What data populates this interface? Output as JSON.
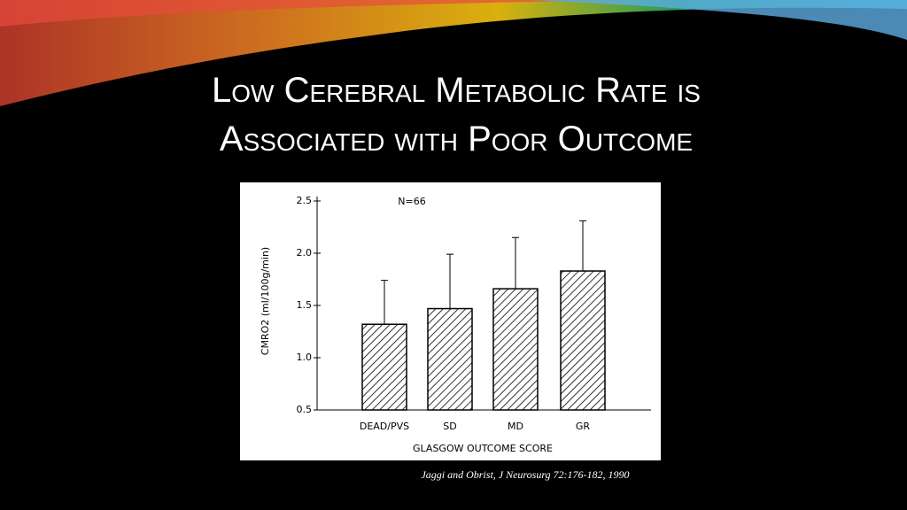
{
  "slide": {
    "title": [
      "Low Cerebral Metabolic Rate is",
      "Associated with Poor Outcome"
    ],
    "citation": "Jaggi and Obrist, J Neurosurg 72:176-182, 1990"
  },
  "chart_data": {
    "type": "bar",
    "annotation": "N=66",
    "ylabel": "CMRO2 (ml/100g/min)",
    "xlabel": "GLASGOW OUTCOME SCORE",
    "categories": [
      "DEAD/PVS",
      "SD",
      "MD",
      "GR"
    ],
    "values": [
      1.32,
      1.47,
      1.66,
      1.83
    ],
    "errors": [
      0.42,
      0.52,
      0.49,
      0.48
    ],
    "color": "#000000",
    "ylim": [
      0.5,
      2.5
    ],
    "yticks": [
      0.5,
      {
        "value": 1.0,
        "label": "1.0"
      },
      1.5,
      {
        "value": 2.0,
        "label": "2.0"
      },
      2.5
    ],
    "grid": false
  }
}
